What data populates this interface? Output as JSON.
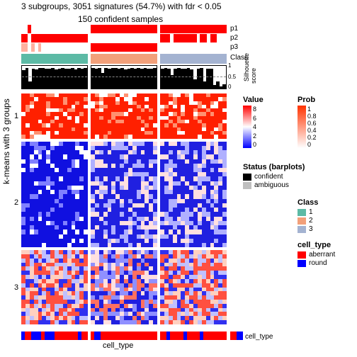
{
  "titles": {
    "main": "3 subgroups, 3051 signatures (54.7%) with fdr < 0.05",
    "sub": "150 confident samples",
    "ylab": "k-means with 3 groups",
    "ct_bottom": "cell_type",
    "ct_side": "cell_type"
  },
  "annotations": {
    "p_rows": [
      "p1",
      "p2",
      "p3"
    ],
    "p_cols": 3,
    "p_cells_per_col": 20,
    "p_colors": [
      [
        [
          "white",
          "white",
          "red",
          "white",
          "white",
          "white",
          "white",
          "white",
          "white",
          "white",
          "white",
          "white",
          "white",
          "white",
          "white",
          "white",
          "white",
          "white",
          "white",
          "white"
        ],
        [
          "red",
          "red",
          "red",
          "red",
          "red",
          "red",
          "red",
          "red",
          "red",
          "red",
          "red",
          "red",
          "red",
          "red",
          "red",
          "red",
          "red",
          "red",
          "red",
          "red"
        ],
        [
          "red",
          "red",
          "red",
          "red",
          "red",
          "red",
          "red",
          "red",
          "red",
          "red",
          "red",
          "red",
          "red",
          "red",
          "red",
          "red",
          "red",
          "red",
          "red",
          "red"
        ]
      ],
      [
        [
          "red",
          "red",
          "white",
          "red",
          "red",
          "red",
          "red",
          "red",
          "red",
          "red",
          "red",
          "red",
          "red",
          "red",
          "red",
          "red",
          "red",
          "red",
          "red",
          "red"
        ],
        [
          "white",
          "white",
          "white",
          "white",
          "white",
          "white",
          "white",
          "white",
          "white",
          "white",
          "white",
          "white",
          "white",
          "white",
          "white",
          "white",
          "white",
          "white",
          "white",
          "white"
        ],
        [
          "red",
          "red",
          "red",
          "white",
          "red",
          "red",
          "red",
          "red",
          "red",
          "red",
          "red",
          "white",
          "red",
          "red",
          "white",
          "red",
          "red",
          "white",
          "white",
          "white"
        ]
      ],
      [
        [
          "#ffcccc",
          "#ffcccc",
          "white",
          "#ffcccc",
          "white",
          "#ffcccc",
          "white",
          "white",
          "white",
          "white",
          "white",
          "white",
          "white",
          "white",
          "white",
          "white",
          "white",
          "white",
          "white",
          "white"
        ],
        [
          "red",
          "red",
          "red",
          "red",
          "red",
          "red",
          "red",
          "red",
          "red",
          "red",
          "red",
          "red",
          "red",
          "red",
          "red",
          "red",
          "red",
          "red",
          "red",
          "red"
        ],
        [
          "white",
          "white",
          "white",
          "white",
          "white",
          "white",
          "white",
          "white",
          "white",
          "white",
          "white",
          "white",
          "white",
          "white",
          "white",
          "white",
          "white",
          "white",
          "white",
          "white"
        ]
      ]
    ],
    "class_lbl": "Class",
    "class_colors": [
      "#5cbaa5",
      "#f2a07a",
      "#a4b3d1"
    ]
  },
  "silhouette": {
    "lbl": "Silhouette",
    "lbl2": "score",
    "ticks": [
      "1",
      "0.5",
      "0"
    ],
    "dash_pos": 0.5,
    "samples_per_col": 20,
    "heights": [
      [
        0.82,
        0.9,
        0.3,
        0.88,
        0.85,
        0.9,
        0.92,
        0.88,
        0.87,
        0.9,
        0.85,
        0.88,
        0.9,
        0.86,
        0.88,
        0.9,
        0.85,
        0.9,
        0.88,
        0.9
      ],
      [
        0.9,
        0.88,
        0.9,
        0.7,
        0.9,
        0.88,
        0.9,
        0.92,
        0.88,
        0.9,
        0.85,
        0.88,
        0.9,
        0.86,
        0.9,
        0.88,
        0.9,
        0.86,
        0.88,
        0.9
      ],
      [
        0.88,
        0.9,
        0.86,
        0.6,
        0.88,
        0.9,
        0.86,
        0.88,
        0.9,
        0.85,
        0.4,
        0.88,
        0.9,
        0.3,
        0.86,
        0.88,
        0.15,
        0.3,
        0.1,
        0.2
      ]
    ]
  },
  "heatmap": {
    "groups": [
      1,
      2,
      3
    ],
    "group_heights": [
      0.2,
      0.47,
      0.33
    ],
    "cols": 3,
    "rows_per_group": [
      12,
      24,
      18
    ],
    "cols_per_panel": 16,
    "colorscale": [
      "#0000ff",
      "#ffffff",
      "#ff0000"
    ],
    "patterns": {
      "g1": {
        "c0": "red-heavy",
        "c1": "red-heavy",
        "c2": "red-heavy"
      },
      "g2": {
        "c0": "blue-heavy",
        "c1": "blue-mid",
        "c2": "blue-mid"
      },
      "g3": {
        "c0": "mixed",
        "c1": "mixed-blue",
        "c2": "mixed"
      }
    }
  },
  "cell_type": {
    "colors": [
      [
        "blue",
        "red",
        "red",
        "blue",
        "blue",
        "blue",
        "red",
        "blue",
        "blue",
        "blue",
        "red",
        "red",
        "red",
        "red",
        "red",
        "red",
        "red",
        "blue",
        "red",
        "red"
      ],
      [
        "red",
        "blue",
        "blue",
        "red",
        "red",
        "red",
        "red",
        "red",
        "red",
        "red",
        "red",
        "red",
        "red",
        "red",
        "red",
        "red",
        "red",
        "red",
        "red",
        "red"
      ],
      [
        "red",
        "red",
        "blue",
        "red",
        "red",
        "red",
        "red",
        "blue",
        "red",
        "red",
        "red",
        "red",
        "blue",
        "red",
        "red",
        "red",
        "red",
        "red",
        "red",
        "red"
      ]
    ],
    "side": [
      "red",
      "blue"
    ]
  },
  "legends": {
    "value": {
      "title": "Value",
      "ticks": [
        "8",
        "6",
        "4",
        "2",
        "0"
      ],
      "colors": [
        "#ff0000",
        "#ffffff",
        "#0000ff"
      ]
    },
    "prob": {
      "title": "Prob",
      "ticks": [
        "1",
        "0.8",
        "0.6",
        "0.4",
        "0.2",
        "0"
      ],
      "colors": [
        "#ff3300",
        "#ffffff"
      ]
    },
    "status": {
      "title": "Status (barplots)",
      "items": [
        {
          "c": "#000000",
          "t": "confident"
        },
        {
          "c": "#bfbfbf",
          "t": "ambiguous"
        }
      ]
    },
    "class": {
      "title": "Class",
      "items": [
        {
          "c": "#5cbaa5",
          "t": "1"
        },
        {
          "c": "#f2a07a",
          "t": "2"
        },
        {
          "c": "#a4b3d1",
          "t": "3"
        }
      ]
    },
    "ctype": {
      "title": "cell_type",
      "items": [
        {
          "c": "#ff0000",
          "t": "aberrant"
        },
        {
          "c": "#0000ff",
          "t": "round"
        }
      ]
    }
  }
}
